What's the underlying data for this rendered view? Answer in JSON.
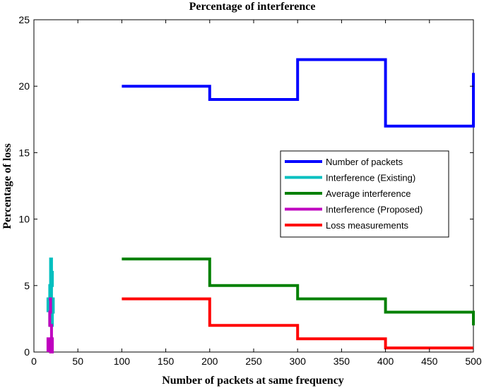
{
  "chart_data": {
    "type": "line",
    "title": "Percentage of interference",
    "xlabel": "Number of packets at same frequency",
    "ylabel": "Percentage of loss",
    "xlim": [
      0,
      500
    ],
    "ylim": [
      0,
      25
    ],
    "xticks": [
      0,
      50,
      100,
      150,
      200,
      250,
      300,
      350,
      400,
      450,
      500
    ],
    "yticks": [
      0,
      5,
      10,
      15,
      20,
      25
    ],
    "grid": false,
    "legend_position": "center-right",
    "series": [
      {
        "name": "Number of packets",
        "color": "#0000ff",
        "points": [
          [
            100,
            20
          ],
          [
            200,
            20
          ],
          [
            200,
            19
          ],
          [
            300,
            19
          ],
          [
            300,
            22
          ],
          [
            400,
            22
          ],
          [
            400,
            17
          ],
          [
            500,
            17
          ],
          [
            500,
            21
          ]
        ]
      },
      {
        "name": "Interference (Existing)",
        "color": "#00bfbf",
        "points": [
          [
            16,
            3
          ],
          [
            16,
            4
          ],
          [
            18,
            4
          ],
          [
            18,
            5
          ],
          [
            20,
            5
          ],
          [
            20,
            4
          ],
          [
            18,
            4
          ],
          [
            18,
            5
          ],
          [
            19,
            5
          ],
          [
            19,
            7
          ],
          [
            20,
            7
          ],
          [
            20,
            6
          ],
          [
            19,
            6
          ],
          [
            19,
            5
          ],
          [
            21,
            5
          ],
          [
            21,
            6
          ],
          [
            20,
            6
          ],
          [
            20,
            3
          ],
          [
            22,
            3
          ],
          [
            22,
            4
          ],
          [
            21,
            4
          ],
          [
            21,
            2
          ],
          [
            20,
            2
          ],
          [
            20,
            3
          ],
          [
            18,
            3
          ],
          [
            18,
            2
          ],
          [
            17,
            2
          ]
        ]
      },
      {
        "name": "Average interference",
        "color": "#008000",
        "points": [
          [
            100,
            7
          ],
          [
            200,
            7
          ],
          [
            200,
            5
          ],
          [
            300,
            5
          ],
          [
            300,
            4
          ],
          [
            400,
            4
          ],
          [
            400,
            3
          ],
          [
            500,
            3
          ],
          [
            500,
            2
          ]
        ]
      },
      {
        "name": "Interference (Proposed)",
        "color": "#bf00bf",
        "points": [
          [
            17,
            4
          ],
          [
            19,
            4
          ],
          [
            19,
            3
          ],
          [
            18,
            3
          ],
          [
            18,
            2
          ],
          [
            20,
            2
          ],
          [
            20,
            1
          ],
          [
            21,
            1
          ],
          [
            21,
            0
          ],
          [
            19,
            0
          ],
          [
            19,
            1
          ],
          [
            16,
            1
          ],
          [
            16,
            0
          ]
        ]
      },
      {
        "name": "Loss measurements",
        "color": "#ff0000",
        "points": [
          [
            100,
            4
          ],
          [
            200,
            4
          ],
          [
            200,
            2
          ],
          [
            300,
            2
          ],
          [
            300,
            1
          ],
          [
            400,
            1
          ],
          [
            400,
            0.3
          ],
          [
            500,
            0.3
          ]
        ]
      }
    ]
  }
}
